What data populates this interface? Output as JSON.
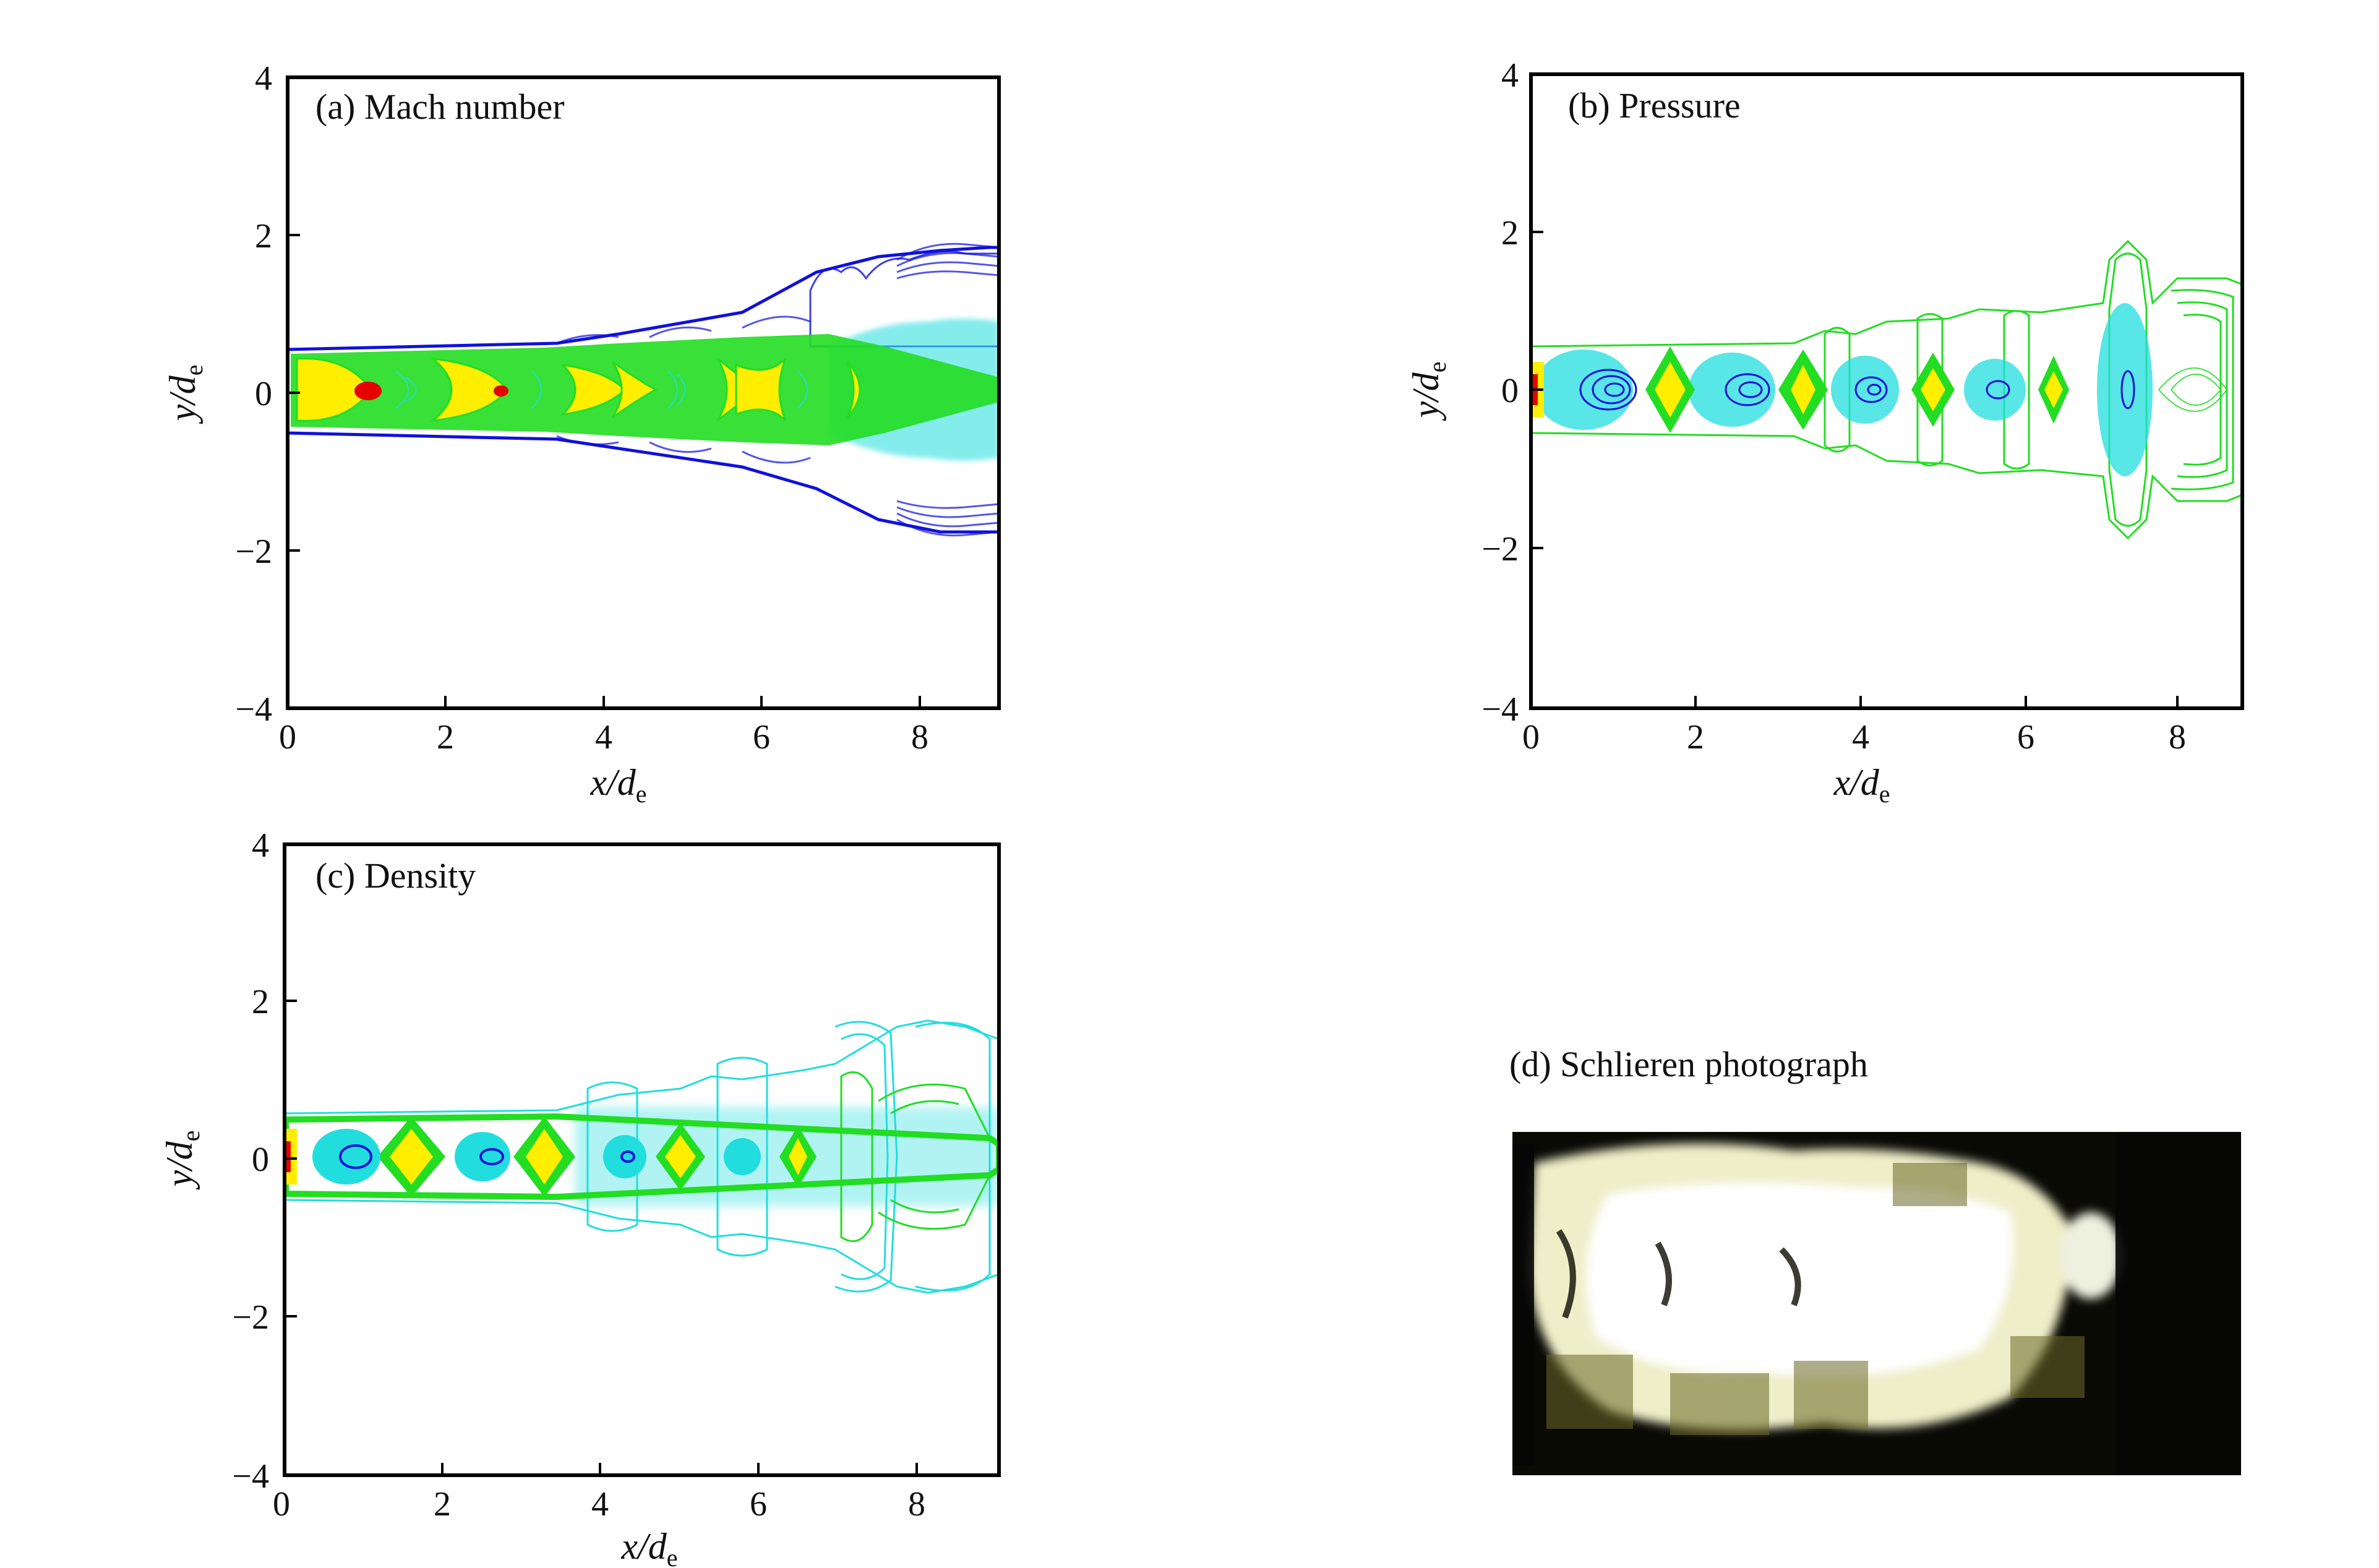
{
  "figure": {
    "panels": [
      {
        "id": "a",
        "label": "(a) Mach number",
        "x_ticks": [
          "0",
          "2",
          "4",
          "6",
          "8"
        ],
        "y_ticks": [
          "4",
          "2",
          "0",
          "−2",
          "−4"
        ],
        "x_axis_label": {
          "main": "x/d",
          "sub": "e"
        },
        "y_axis_label": {
          "main": "y/d",
          "sub": "e"
        },
        "xlim": [
          0,
          9
        ],
        "ylim": [
          -4,
          4
        ]
      },
      {
        "id": "b",
        "label": "(b) Pressure",
        "x_ticks": [
          "0",
          "2",
          "4",
          "6",
          "8"
        ],
        "y_ticks": [
          "4",
          "2",
          "0",
          "−2",
          "−4"
        ],
        "x_axis_label": {
          "main": "x/d",
          "sub": "e"
        },
        "y_axis_label": {
          "main": "y/d",
          "sub": "e"
        },
        "xlim": [
          0,
          9
        ],
        "ylim": [
          -4,
          4
        ]
      },
      {
        "id": "c",
        "label": "(c) Density",
        "x_ticks": [
          "0",
          "2",
          "4",
          "6",
          "8"
        ],
        "y_ticks": [
          "4",
          "2",
          "0",
          "−2",
          "−4"
        ],
        "x_axis_label": {
          "main": "x/d",
          "sub": "e"
        },
        "y_axis_label": {
          "main": "y/d",
          "sub": "e"
        },
        "xlim": [
          0,
          9
        ],
        "ylim": [
          -4,
          4
        ]
      },
      {
        "id": "d",
        "label": "(d) Schlieren photograph"
      }
    ],
    "contour_palette": {
      "red": "#e60000",
      "yellow": "#ffee00",
      "green": "#22dd22",
      "cyan": "#22dddd",
      "blue": "#1010dd"
    }
  }
}
